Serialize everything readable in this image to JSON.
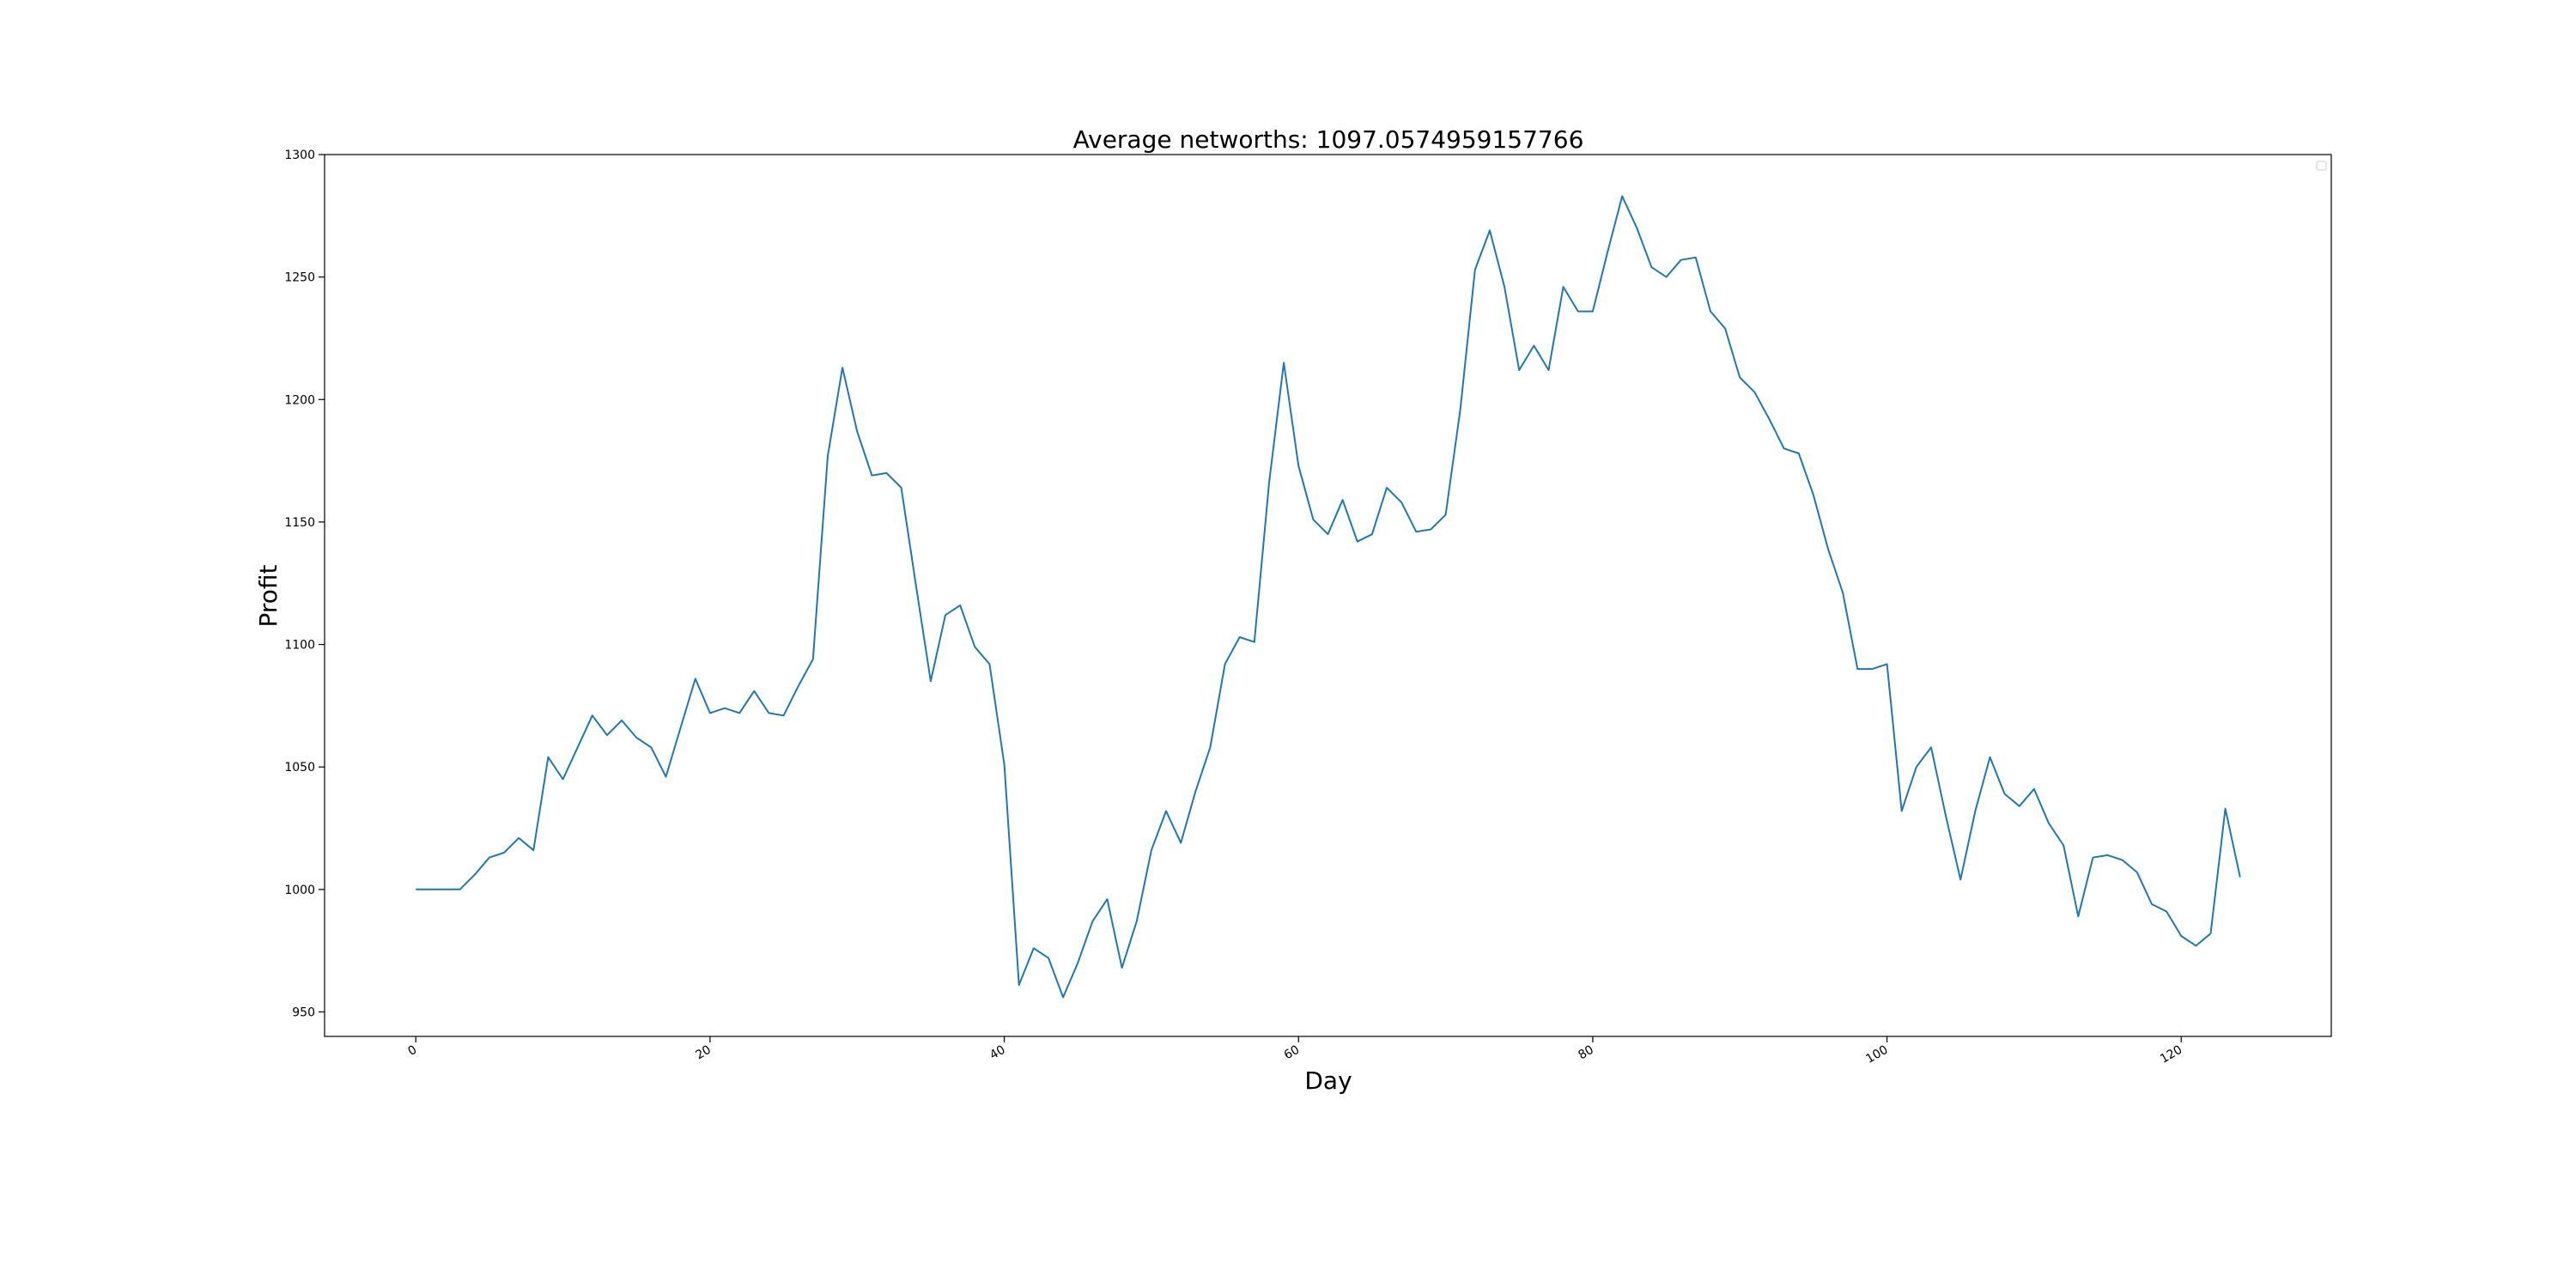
{
  "chart_data": {
    "type": "line",
    "title": "Average networths: 1097.0574959157766",
    "xlabel": "Day",
    "ylabel": "Profit",
    "xlim": [
      -6.2,
      130.2
    ],
    "ylim": [
      940,
      1300
    ],
    "xticks": [
      0,
      20,
      40,
      60,
      80,
      100,
      120
    ],
    "yticks": [
      950,
      1000,
      1050,
      1100,
      1150,
      1200,
      1250,
      1300
    ],
    "grid": false,
    "legend": "top-right",
    "color": "#1f77b4",
    "series": [
      {
        "values": [
          1000,
          1000,
          1000,
          1000,
          1006,
          1013,
          1015,
          1021,
          1016,
          1054,
          1045,
          1058,
          1071,
          1063,
          1069,
          1062,
          1058,
          1046,
          1066,
          1086,
          1072,
          1074,
          1072,
          1081,
          1072,
          1071,
          1083,
          1094,
          1177,
          1213,
          1187,
          1169,
          1170,
          1164,
          1124,
          1085,
          1112,
          1116,
          1099,
          1092,
          1051,
          961,
          976,
          972,
          956,
          970,
          987,
          996,
          968,
          987,
          1016,
          1032,
          1019,
          1040,
          1058,
          1092,
          1103,
          1101,
          1166,
          1215,
          1173,
          1151,
          1145,
          1159,
          1142,
          1145,
          1164,
          1158,
          1146,
          1147,
          1153,
          1196,
          1253,
          1269,
          1246,
          1212,
          1222,
          1212,
          1246,
          1236,
          1236,
          1260,
          1283,
          1270,
          1254,
          1250,
          1257,
          1258,
          1236,
          1229,
          1209,
          1203,
          1192,
          1180,
          1178,
          1161,
          1139,
          1121,
          1090,
          1090,
          1092,
          1032,
          1050,
          1058,
          1030,
          1004,
          1032,
          1054,
          1039,
          1034,
          1041,
          1027,
          1018,
          989,
          1013,
          1014,
          1012,
          1007,
          994,
          991,
          981,
          977,
          982,
          1033,
          1005
        ]
      }
    ]
  }
}
